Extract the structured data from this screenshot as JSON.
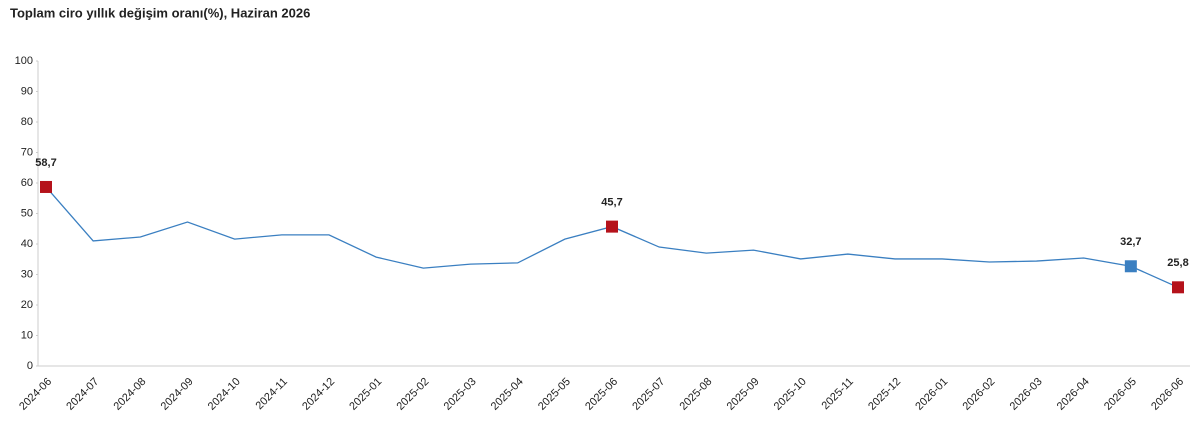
{
  "chart_data": {
    "type": "line",
    "title": "Toplam ciro yıllık değişim oranı(%), Haziran 2026",
    "categories": [
      "2024-06",
      "2024-07",
      "2024-08",
      "2024-09",
      "2024-10",
      "2024-11",
      "2024-12",
      "2025-01",
      "2025-02",
      "2025-03",
      "2025-04",
      "2025-05",
      "2025-06",
      "2025-07",
      "2025-08",
      "2025-09",
      "2025-10",
      "2025-11",
      "2025-12",
      "2026-01",
      "2026-02",
      "2026-03",
      "2026-04",
      "2026-05",
      "2026-06"
    ],
    "series": [
      {
        "name": "Toplam ciro yıllık değişim oranı",
        "color": "#3a7fc1",
        "values": [
          58.7,
          41.0,
          42.3,
          47.2,
          41.6,
          43.0,
          43.0,
          35.7,
          32.1,
          33.4,
          33.8,
          41.6,
          45.7,
          39.0,
          37.0,
          38.0,
          35.1,
          36.7,
          35.1,
          35.1,
          34.1,
          34.4,
          35.4,
          32.7,
          25.8
        ],
        "value_labels": [
          "58,7",
          null,
          null,
          null,
          null,
          null,
          null,
          null,
          null,
          null,
          null,
          null,
          "45,7",
          null,
          null,
          null,
          null,
          null,
          null,
          null,
          null,
          null,
          null,
          "32,7",
          "25,8"
        ],
        "marker_colors": [
          "#b5121b",
          null,
          null,
          null,
          null,
          null,
          null,
          null,
          null,
          null,
          null,
          null,
          "#b5121b",
          null,
          null,
          null,
          null,
          null,
          null,
          null,
          null,
          null,
          null,
          "#3a7fc1",
          "#b5121b"
        ]
      }
    ],
    "ylim": [
      0,
      100
    ],
    "yticks": [
      0,
      10,
      20,
      30,
      40,
      50,
      60,
      70,
      80,
      90,
      100
    ],
    "grid": false
  }
}
